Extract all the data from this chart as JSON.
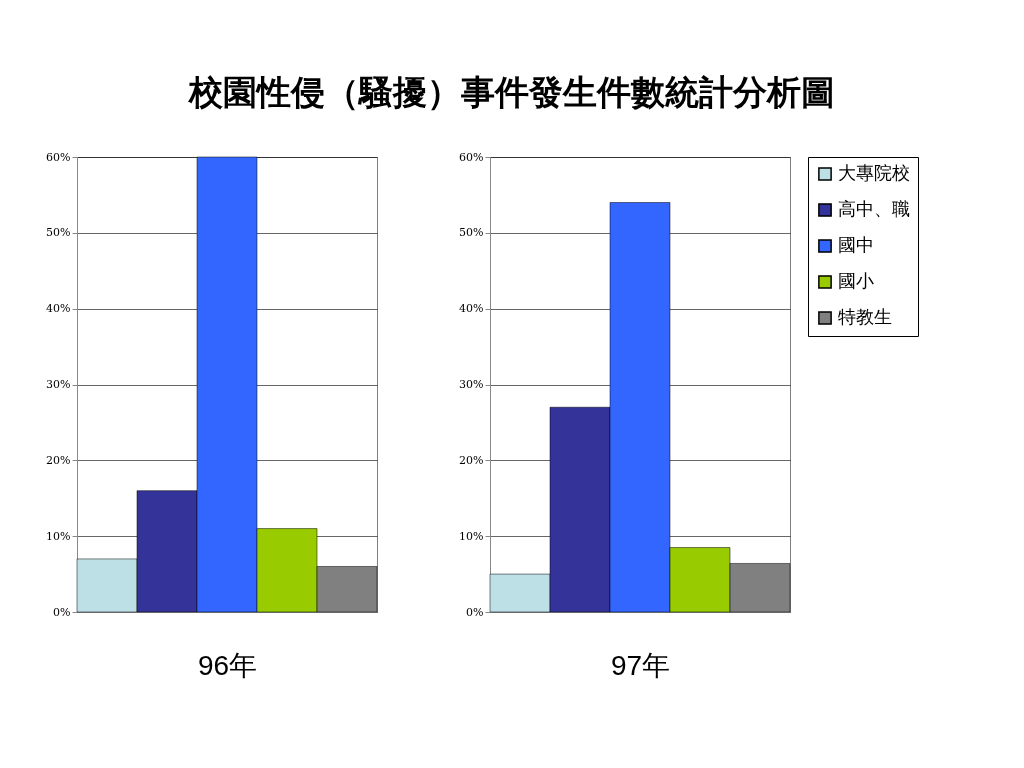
{
  "chart_data": [
    {
      "type": "bar",
      "title": "校園性侵（騷擾）事件發生件數統計分析圖",
      "xlabel": "96年",
      "categories": [
        null
      ],
      "series": [
        {
          "color": "#bde0e6",
          "values": [
            7
          ]
        },
        {
          "color": "#333399",
          "values": [
            16
          ]
        },
        {
          "color": "#3366ff",
          "values": [
            60
          ]
        },
        {
          "color": "#99cc00",
          "values": [
            11
          ]
        },
        {
          "color": "#808080",
          "values": [
            6
          ]
        }
      ],
      "ylim": [
        0,
        60
      ],
      "yticks": [
        {
          "value": 0,
          "label": "0%"
        },
        {
          "value": 10,
          "label": "10%"
        },
        {
          "value": 20,
          "label": "20%"
        },
        {
          "value": 30,
          "label": "30%"
        },
        {
          "value": 40,
          "label": "40%"
        },
        {
          "value": 50,
          "label": "50%"
        },
        {
          "value": 60,
          "label": "60%"
        }
      ],
      "grid": "y",
      "tick_labels": "y"
    },
    {
      "type": "bar",
      "xlabel": "97年",
      "categories": [
        null
      ],
      "series": [
        {
          "name": "大專院校",
          "color": "#bde0e6",
          "values": [
            5
          ]
        },
        {
          "name": "高中、職",
          "color": "#333399",
          "values": [
            27
          ]
        },
        {
          "name": "國中",
          "color": "#3366ff",
          "values": [
            54
          ]
        },
        {
          "name": "國小",
          "color": "#99cc00",
          "values": [
            8.5
          ]
        },
        {
          "name": "特教生",
          "color": "#808080",
          "values": [
            6.4
          ]
        }
      ],
      "ylim": [
        0,
        60
      ],
      "yticks": [
        {
          "value": 0,
          "label": "0%"
        },
        {
          "value": 10,
          "label": "10%"
        },
        {
          "value": 20,
          "label": "20%"
        },
        {
          "value": 30,
          "label": "30%"
        },
        {
          "value": 40,
          "label": "40%"
        },
        {
          "value": 50,
          "label": "50%"
        },
        {
          "value": 60,
          "label": "60%"
        }
      ],
      "grid": "y",
      "tick_labels": "y",
      "legend": "right"
    }
  ]
}
